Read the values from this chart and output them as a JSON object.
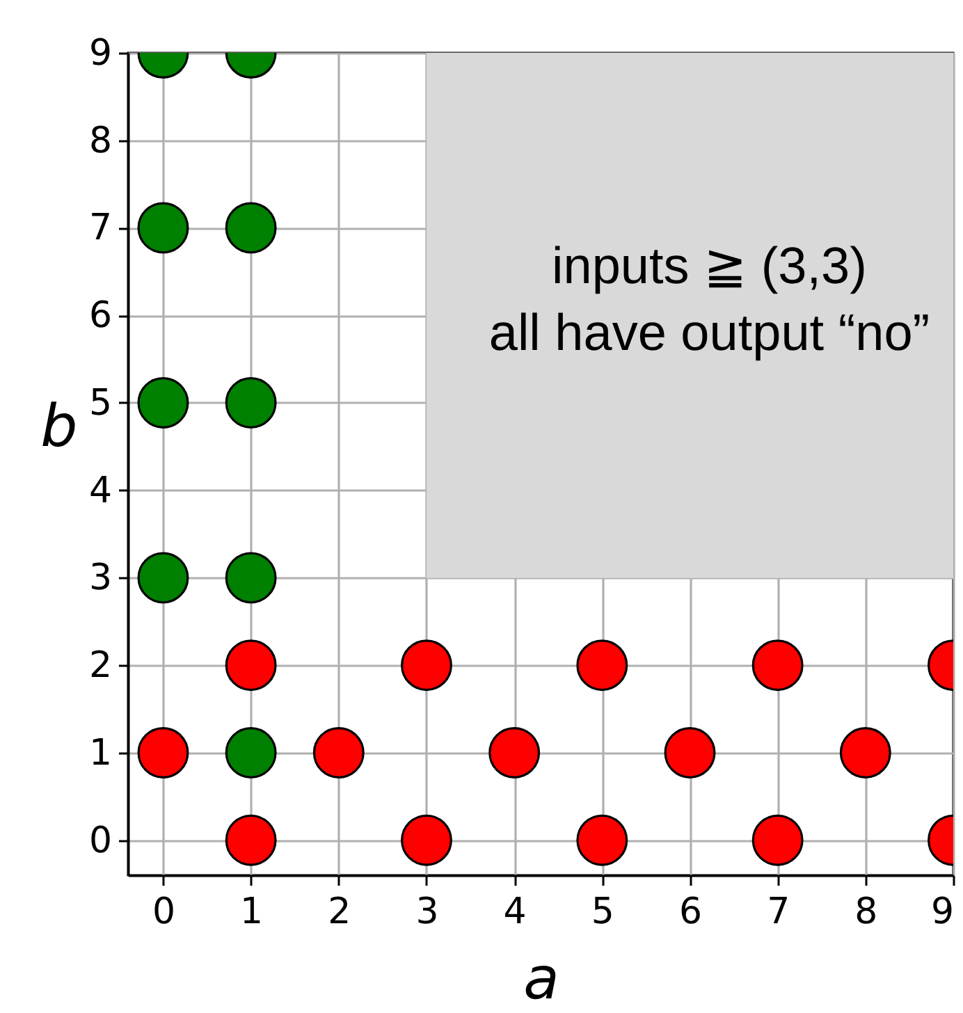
{
  "chart_data": {
    "type": "scatter",
    "xlabel": "a",
    "ylabel": "b",
    "series": [
      {
        "color": "#008000",
        "x": [
          0,
          1,
          0,
          1,
          0,
          1,
          0,
          1,
          1
        ],
        "values": [
          9,
          9,
          7,
          7,
          5,
          5,
          3,
          3,
          1
        ]
      },
      {
        "color": "#ff0000",
        "x": [
          0,
          1,
          1,
          2,
          3,
          3,
          4,
          5,
          5,
          6,
          7,
          7,
          8,
          9,
          9
        ],
        "values": [
          1,
          2,
          0,
          1,
          2,
          0,
          1,
          2,
          0,
          1,
          2,
          0,
          1,
          2,
          0
        ]
      }
    ],
    "xlim": [
      -0.4,
      9
    ],
    "ylim": [
      -0.4,
      9
    ],
    "xticks": [
      0,
      1,
      2,
      3,
      4,
      5,
      6,
      7,
      8,
      9
    ],
    "yticks": [
      0,
      1,
      2,
      3,
      4,
      5,
      6,
      7,
      8,
      9
    ],
    "grid": true,
    "marker": "circle",
    "bands": [
      {
        "axis": "x",
        "from": 3,
        "to": 9,
        "color": "#d9d9d9"
      },
      {
        "axis": "y",
        "from": 3,
        "to": 9,
        "color": "#d9d9d9",
        "label": "inputs ≧ (3,3)\nall have output “no”"
      }
    ]
  }
}
